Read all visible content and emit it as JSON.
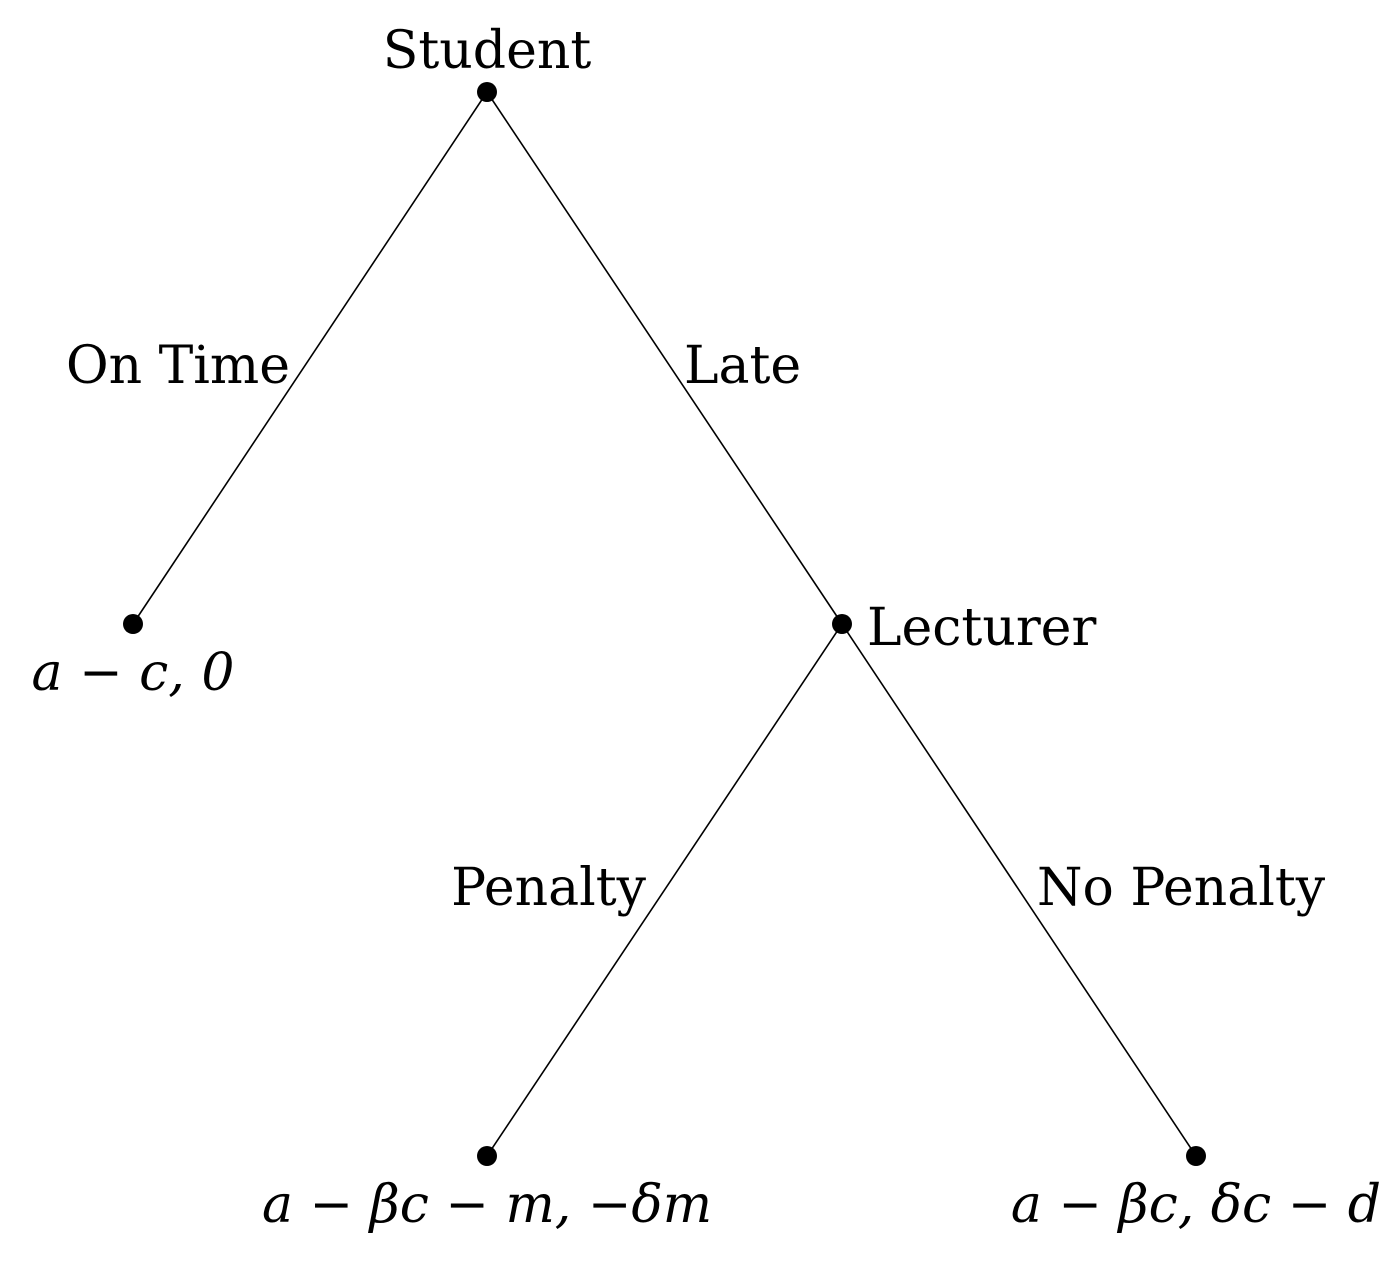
{
  "nodes": {
    "root": {
      "player": "Student"
    },
    "lecturer": {
      "player": "Lecturer"
    }
  },
  "actions": {
    "on_time": "On Time",
    "late": "Late",
    "penalty": "Penalty",
    "no_penalty": "No Penalty"
  },
  "payoffs": {
    "on_time": "a − c, 0",
    "penalty": "a − βc − m, −δm",
    "no_penalty": "a − βc, δc − d"
  }
}
